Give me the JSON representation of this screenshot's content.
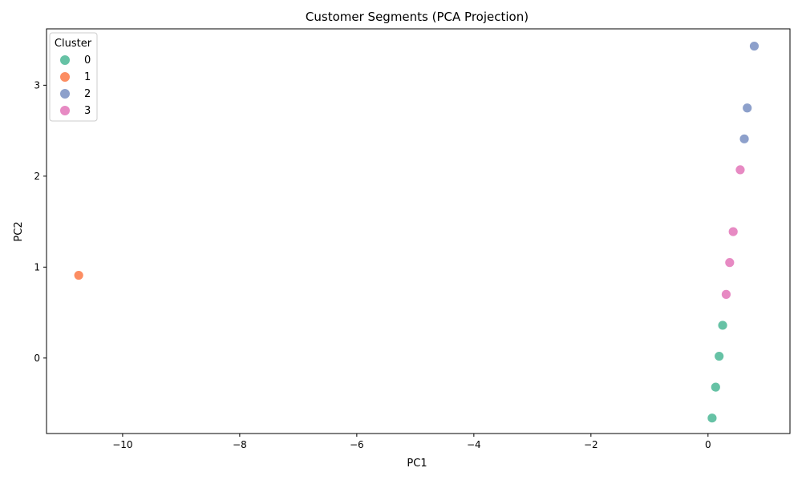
{
  "chart_data": {
    "type": "scatter",
    "title": "Customer Segments (PCA Projection)",
    "xlabel": "PC1",
    "ylabel": "PC2",
    "xlim": [
      -11.3,
      1.4
    ],
    "ylim": [
      -0.83,
      3.62
    ],
    "x_ticks": [
      -10,
      -8,
      -6,
      -4,
      -2,
      0
    ],
    "y_ticks": [
      0,
      1,
      2,
      3
    ],
    "grid": false,
    "legend": {
      "title": "Cluster",
      "placement": "top-left"
    },
    "series": [
      {
        "name": "0",
        "color": "#66c2a5",
        "points": [
          [
            0.07,
            -0.66
          ],
          [
            0.13,
            -0.32
          ],
          [
            0.19,
            0.02
          ],
          [
            0.25,
            0.36
          ]
        ]
      },
      {
        "name": "1",
        "color": "#fc8d62",
        "points": [
          [
            -10.75,
            0.91
          ]
        ]
      },
      {
        "name": "2",
        "color": "#8da0cb",
        "points": [
          [
            0.62,
            2.41
          ],
          [
            0.67,
            2.75
          ],
          [
            0.79,
            3.43
          ]
        ]
      },
      {
        "name": "3",
        "color": "#e78ac3",
        "points": [
          [
            0.31,
            0.7
          ],
          [
            0.37,
            1.05
          ],
          [
            0.43,
            1.39
          ],
          [
            0.55,
            2.07
          ]
        ]
      }
    ]
  }
}
